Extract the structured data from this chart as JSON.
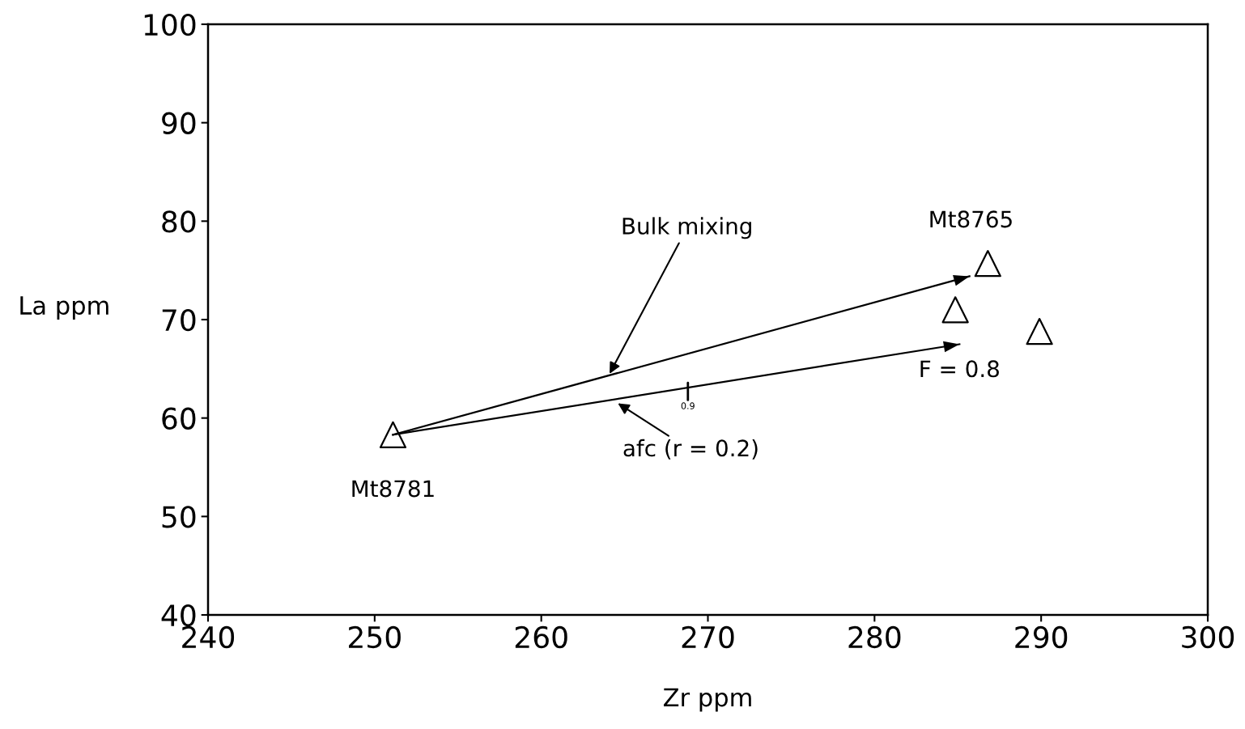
{
  "chart_data": {
    "type": "scatter",
    "xlabel": "Zr ppm",
    "ylabel": "La ppm",
    "xlim": [
      240,
      300
    ],
    "ylim": [
      40,
      100
    ],
    "xticks": [
      240,
      250,
      260,
      270,
      280,
      290,
      300
    ],
    "yticks": [
      40,
      50,
      60,
      70,
      80,
      90,
      100
    ],
    "grid": false,
    "series": [
      {
        "marker": "triangle",
        "color": "#000000",
        "x": [
          251.1,
          286.8,
          284.85,
          289.9
        ],
        "values": [
          58.3,
          75.7,
          71.0,
          68.8
        ]
      },
      {
        "type": "line",
        "marker": "none",
        "color": "#000000",
        "x": [
          251.1,
          285.7
        ],
        "values": [
          58.3,
          74.4
        ]
      },
      {
        "type": "line",
        "marker": "none",
        "color": "#000000",
        "x": [
          251.1,
          285.1
        ],
        "values": [
          58.3,
          67.5
        ]
      }
    ],
    "annotations": [
      {
        "text": "Mt8781",
        "x": 251.1,
        "y": 58.3
      },
      {
        "text": "Mt8765",
        "x": 286.8,
        "y": 75.7
      },
      {
        "text": "Bulk mixing",
        "x": 264.1,
        "y": 64.5
      },
      {
        "text": "afc (r = 0.2)",
        "x": 264.6,
        "y": 61.5
      },
      {
        "text": "F = 0.8",
        "x": 285.1,
        "y": 67.5
      },
      {
        "text": "0.9",
        "x": 268.8,
        "y": 63.2
      }
    ]
  }
}
